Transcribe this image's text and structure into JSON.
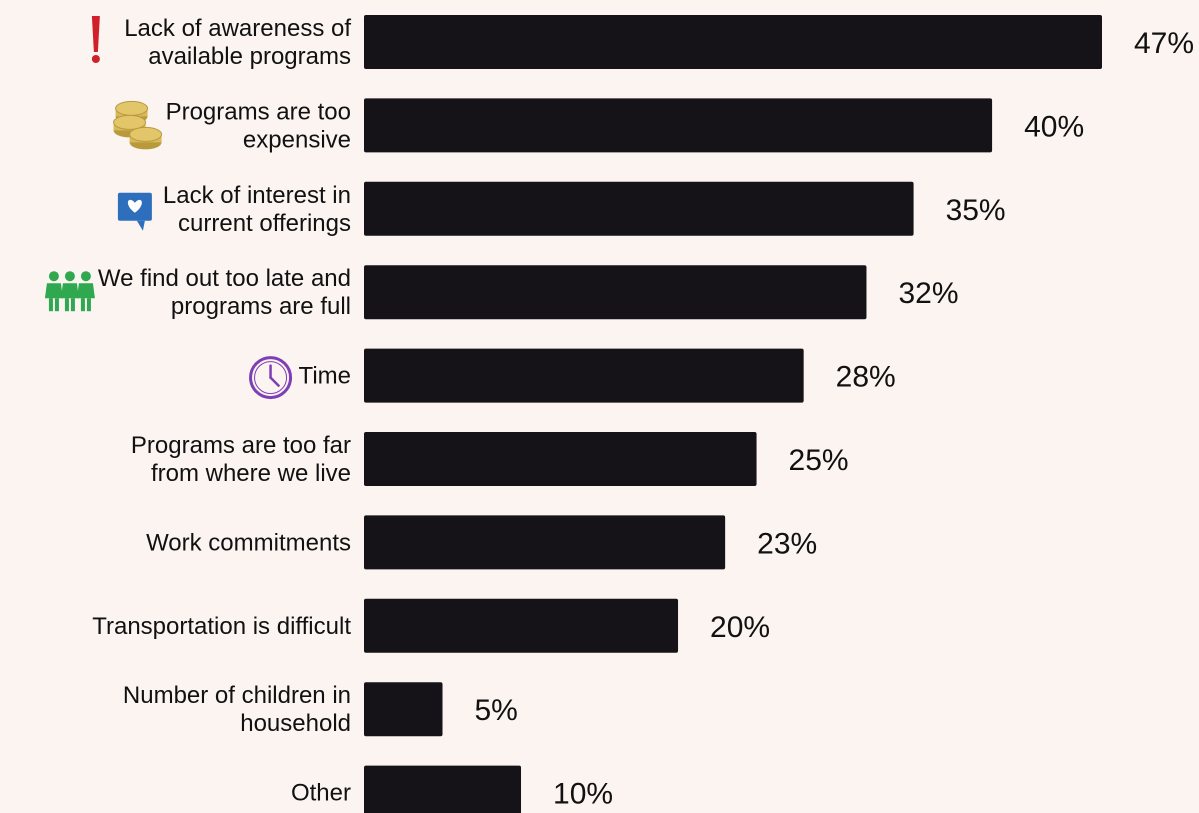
{
  "chart_data": {
    "type": "bar",
    "orientation": "horizontal",
    "title": "",
    "xlabel": "",
    "ylabel": "",
    "xlim": [
      0,
      47
    ],
    "grid": false,
    "value_suffix": "%",
    "bar_color": "#151318",
    "background_color": "#fbf4f0",
    "categories": [
      "Lack of awareness of available programs",
      "Programs are too expensive",
      "Lack of interest in current offerings",
      "We find out too late and programs are full",
      "Time",
      "Programs are too far from where we live",
      "Work commitments",
      "Transportation is difficult",
      "Number of children in household",
      "Other"
    ],
    "label_lines": [
      [
        "Lack of awareness of",
        "available programs"
      ],
      [
        "Programs are too",
        "expensive"
      ],
      [
        "Lack of interest in",
        "current offerings"
      ],
      [
        "We find out too late and",
        "programs are full"
      ],
      [
        "Time"
      ],
      [
        "Programs are too far",
        "from where we live"
      ],
      [
        "Work commitments"
      ],
      [
        "Transportation is difficult"
      ],
      [
        "Number of children in",
        "household"
      ],
      [
        "Other"
      ]
    ],
    "values": [
      47,
      40,
      35,
      32,
      28,
      25,
      23,
      20,
      5,
      10
    ],
    "value_labels": [
      "47%",
      "40%",
      "35%",
      "32%",
      "28%",
      "25%",
      "23%",
      "20%",
      "5%",
      "10%"
    ],
    "icons": [
      {
        "name": "exclamation-icon",
        "color": "#d0202a"
      },
      {
        "name": "coins-icon",
        "color": "#e3c56a"
      },
      {
        "name": "heart-speech-bubble-icon",
        "color": "#2e6fbd"
      },
      {
        "name": "three-people-icon",
        "color": "#2fa84f"
      },
      {
        "name": "clock-icon",
        "color": "#7e3fb5"
      },
      null,
      null,
      null,
      null,
      null
    ]
  }
}
